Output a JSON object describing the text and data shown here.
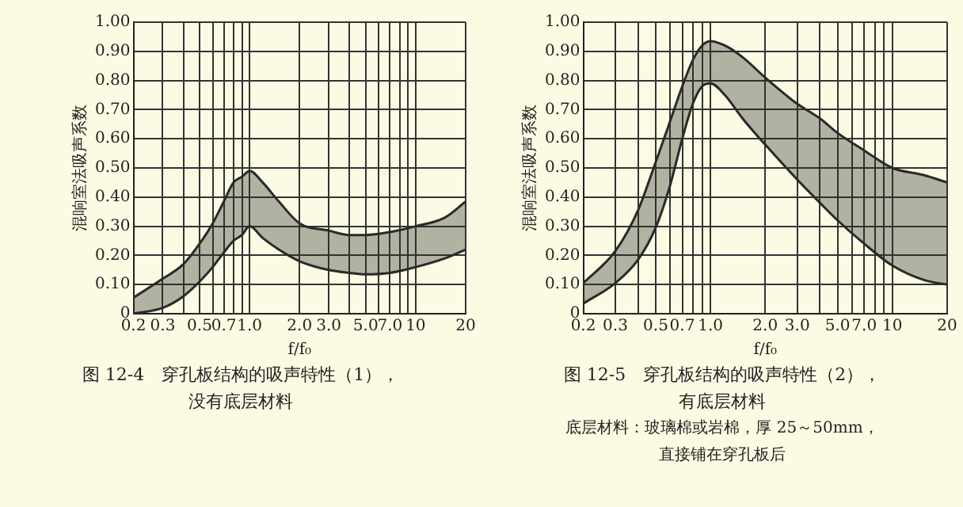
{
  "chart_data": [
    {
      "type": "area",
      "title": "图 12-4　穿孔板结构的吸声特性（1），",
      "subtitle": "没有底层材料",
      "xlabel": "f/f₀",
      "ylabel": "混响室法吸声系数",
      "log": "x",
      "x": [
        0.2,
        0.3,
        0.4,
        0.5,
        0.6,
        0.7,
        0.8,
        0.9,
        1.0,
        1.2,
        1.5,
        2,
        3,
        4,
        5,
        7,
        10,
        15,
        20
      ],
      "series": [
        {
          "type": "line",
          "color": "#2a2a2a",
          "values": [
            0.0,
            0.02,
            0.06,
            0.11,
            0.16,
            0.21,
            0.25,
            0.27,
            0.3,
            0.26,
            0.22,
            0.18,
            0.15,
            0.14,
            0.135,
            0.14,
            0.16,
            0.19,
            0.22
          ]
        },
        {
          "type": "area",
          "color": "#2a2a2a",
          "values": [
            0.055,
            0.12,
            0.17,
            0.24,
            0.31,
            0.385,
            0.45,
            0.47,
            0.49,
            0.45,
            0.385,
            0.31,
            0.285,
            0.27,
            0.27,
            0.28,
            0.3,
            0.33,
            0.385
          ]
        }
      ],
      "xlim": [
        0.2,
        20
      ],
      "ylim": [
        0,
        1
      ],
      "xticks": [
        0.2,
        0.3,
        {
          "value": 0.4,
          "label": null
        },
        0.5,
        {
          "value": 0.6,
          "label": null
        },
        0.7,
        {
          "value": 0.8,
          "label": null
        },
        {
          "value": 0.9,
          "label": null
        },
        {
          "value": 1,
          "label": "1.0"
        },
        {
          "value": 2,
          "label": "2.0"
        },
        {
          "value": 3,
          "label": "3.0"
        },
        {
          "value": 4,
          "label": null
        },
        {
          "value": 5,
          "label": "5.0"
        },
        {
          "value": 6,
          "label": null
        },
        {
          "value": 7,
          "label": "7.0"
        },
        {
          "value": 8,
          "label": null
        },
        {
          "value": 9,
          "label": null
        },
        10,
        20
      ],
      "yticks": [
        0,
        {
          "value": 0.1,
          "label": "0.10"
        },
        {
          "value": 0.2,
          "label": "0.20"
        },
        {
          "value": 0.3,
          "label": "0.30"
        },
        {
          "value": 0.4,
          "label": "0.40"
        },
        {
          "value": 0.5,
          "label": "0.50"
        },
        {
          "value": 0.6,
          "label": "0.60"
        },
        {
          "value": 0.7,
          "label": "0.70"
        },
        {
          "value": 0.8,
          "label": "0.80"
        },
        {
          "value": 0.9,
          "label": "0.90"
        },
        {
          "value": 1,
          "label": "1.00"
        }
      ],
      "grid": true,
      "legend": false
    },
    {
      "type": "area",
      "title": "图 12-5　穿孔板结构的吸声特性（2），",
      "subtitle": "有底层材料",
      "xlabel": "f/f₀",
      "ylabel": "混响室法吸声系数",
      "log": "x",
      "annotations": [
        "底层材料：玻璃棉或岩棉，厚 25～50mm，",
        "直接铺在穿孔板后"
      ],
      "x": [
        0.2,
        0.3,
        0.4,
        0.5,
        0.6,
        0.7,
        0.8,
        0.9,
        1.0,
        1.2,
        1.5,
        2,
        3,
        4,
        5,
        7,
        10,
        15,
        20
      ],
      "series": [
        {
          "type": "line",
          "color": "#2a2a2a",
          "values": [
            0.035,
            0.105,
            0.185,
            0.295,
            0.44,
            0.6,
            0.72,
            0.78,
            0.79,
            0.75,
            0.67,
            0.58,
            0.46,
            0.38,
            0.32,
            0.24,
            0.165,
            0.115,
            0.1
          ]
        },
        {
          "type": "area",
          "color": "#2a2a2a",
          "values": [
            0.105,
            0.215,
            0.355,
            0.52,
            0.66,
            0.78,
            0.87,
            0.92,
            0.935,
            0.92,
            0.88,
            0.81,
            0.72,
            0.67,
            0.62,
            0.56,
            0.5,
            0.475,
            0.45
          ]
        }
      ],
      "xlim": [
        0.2,
        20
      ],
      "ylim": [
        0,
        1
      ],
      "xticks": [
        0.2,
        0.3,
        {
          "value": 0.4,
          "label": null
        },
        0.5,
        {
          "value": 0.6,
          "label": null
        },
        0.7,
        {
          "value": 0.8,
          "label": null
        },
        {
          "value": 0.9,
          "label": null
        },
        {
          "value": 1,
          "label": "1.0"
        },
        {
          "value": 2,
          "label": "2.0"
        },
        {
          "value": 3,
          "label": "3.0"
        },
        {
          "value": 4,
          "label": null
        },
        {
          "value": 5,
          "label": "5.0"
        },
        {
          "value": 6,
          "label": null
        },
        {
          "value": 7,
          "label": "7.0"
        },
        {
          "value": 8,
          "label": null
        },
        {
          "value": 9,
          "label": null
        },
        10,
        20
      ],
      "yticks": [
        0,
        {
          "value": 0.1,
          "label": "0.10"
        },
        {
          "value": 0.2,
          "label": "0.20"
        },
        {
          "value": 0.3,
          "label": "0.30"
        },
        {
          "value": 0.4,
          "label": "0.40"
        },
        {
          "value": 0.5,
          "label": "0.50"
        },
        {
          "value": 0.6,
          "label": "0.60"
        },
        {
          "value": 0.7,
          "label": "0.70"
        },
        {
          "value": 0.8,
          "label": "0.80"
        },
        {
          "value": 0.9,
          "label": "0.90"
        },
        {
          "value": 1,
          "label": "1.00"
        }
      ],
      "grid": true,
      "legend": false
    }
  ]
}
